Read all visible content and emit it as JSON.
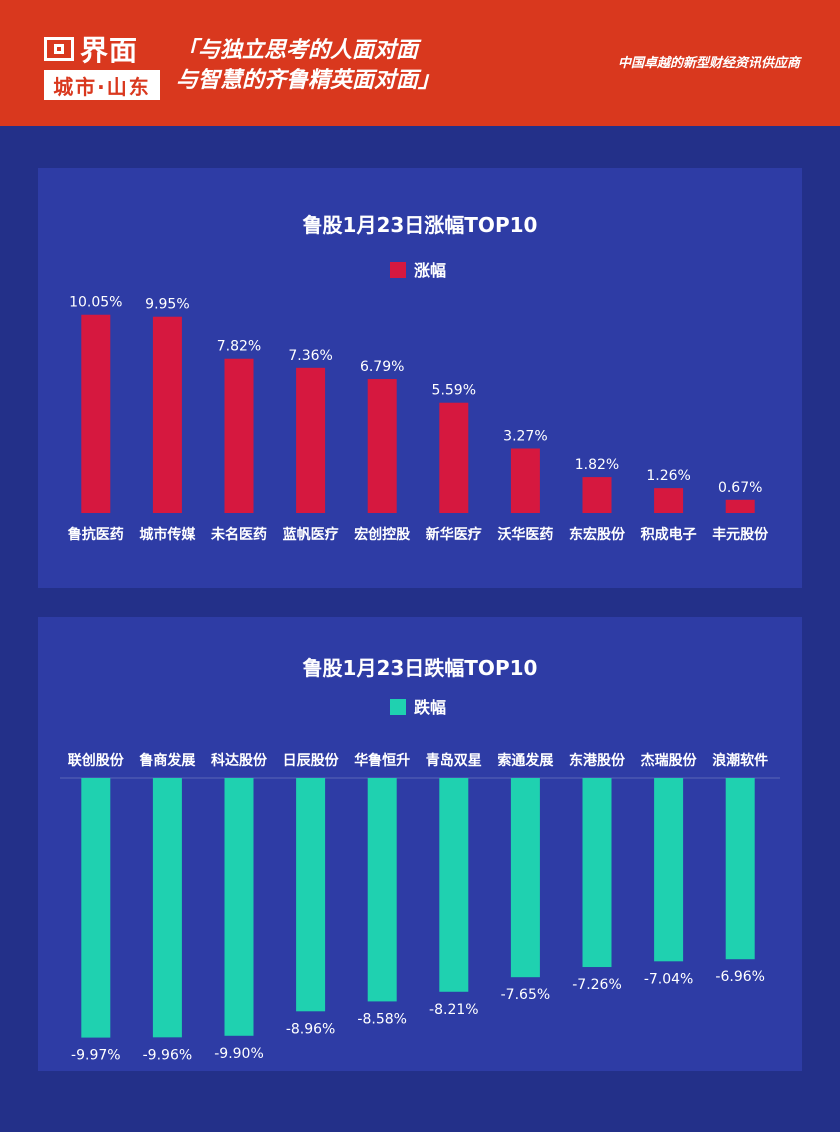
{
  "header": {
    "logo_title": "界面",
    "logo_sub": "城市·山东",
    "slogan_line1": "「与独立思考的人面对面",
    "slogan_line2": "与智慧的齐鲁精英面对面」",
    "tagline": "中国卓越的新型财经资讯供应商"
  },
  "colors": {
    "header_bg": "#d9381e",
    "page_bg": "#233089",
    "panel_bg": "#2e3ca5",
    "gain": "#d6183f",
    "loss": "#1fd1b0"
  },
  "chart_data": [
    {
      "type": "bar",
      "title": "鲁股1月23日涨幅TOP10",
      "legend": "涨幅",
      "series": [
        {
          "name": "涨幅",
          "values": [
            10.05,
            9.95,
            7.82,
            7.36,
            6.79,
            5.59,
            3.27,
            1.82,
            1.26,
            0.67
          ]
        }
      ],
      "categories": [
        "鲁抗医药",
        "城市传媒",
        "未名医药",
        "蓝帆医疗",
        "宏创控股",
        "新华医疗",
        "沃华医药",
        "东宏股份",
        "积成电子",
        "丰元股份"
      ],
      "labels": [
        "10.05%",
        "9.95%",
        "7.82%",
        "7.36%",
        "6.79%",
        "5.59%",
        "3.27%",
        "1.82%",
        "1.26%",
        "0.67%"
      ],
      "ylim": [
        0,
        11
      ]
    },
    {
      "type": "bar",
      "title": "鲁股1月23日跌幅TOP10",
      "legend": "跌幅",
      "series": [
        {
          "name": "跌幅",
          "values": [
            -9.97,
            -9.96,
            -9.9,
            -8.96,
            -8.58,
            -8.21,
            -7.65,
            -7.26,
            -7.04,
            -6.96
          ]
        }
      ],
      "categories": [
        "联创股份",
        "鲁商发展",
        "科达股份",
        "日辰股份",
        "华鲁恒升",
        "青岛双星",
        "索通发展",
        "东港股份",
        "杰瑞股份",
        "浪潮软件"
      ],
      "labels": [
        "-9.97%",
        "-9.96%",
        "-9.90%",
        "-8.96%",
        "-8.58%",
        "-8.21%",
        "-7.65%",
        "-7.26%",
        "-7.04%",
        "-6.96%"
      ],
      "ylim": [
        -10.6,
        0
      ]
    }
  ]
}
